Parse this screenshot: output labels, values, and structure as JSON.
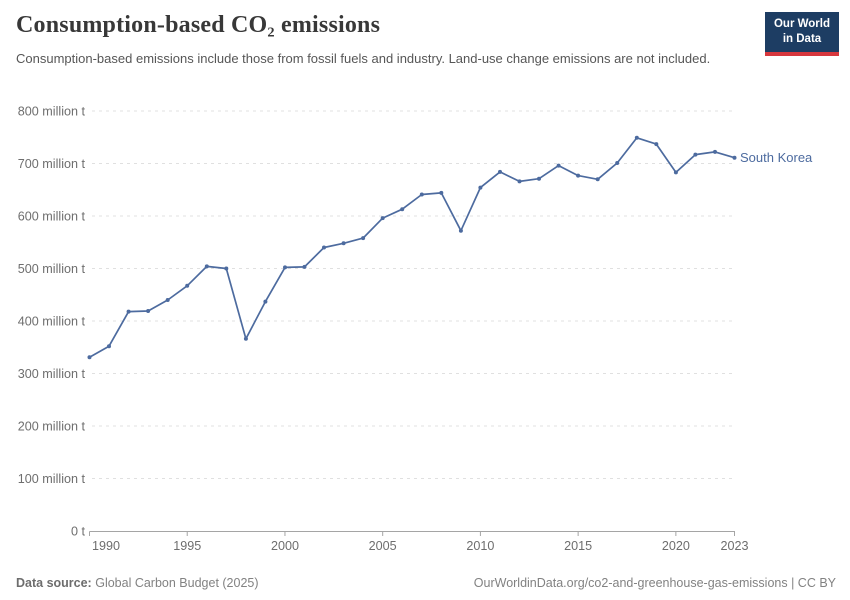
{
  "header": {
    "title": "Consumption-based CO₂ emissions",
    "subtitle": "Consumption-based emissions include those from fossil fuels and industry. Land-use change emissions are not included.",
    "logo": {
      "line1": "Our World",
      "line2": "in Data"
    }
  },
  "chart_data": {
    "type": "line",
    "title": "Consumption-based CO₂ emissions",
    "unit": "million t",
    "grid": "horizontal-dashed",
    "legend_position": "end-of-line-label",
    "xlim": [
      1990,
      2023
    ],
    "ylim": [
      0,
      800
    ],
    "x": [
      1990,
      1991,
      1992,
      1993,
      1994,
      1995,
      1996,
      1997,
      1998,
      1999,
      2000,
      2001,
      2002,
      2003,
      2004,
      2005,
      2006,
      2007,
      2008,
      2009,
      2010,
      2011,
      2012,
      2013,
      2014,
      2015,
      2016,
      2017,
      2018,
      2019,
      2020,
      2021,
      2022,
      2023
    ],
    "series": [
      {
        "name": "South Korea",
        "values": [
          331,
          352,
          418,
          419,
          440,
          467,
          504,
          500,
          366,
          437,
          502,
          503,
          540,
          548,
          558,
          596,
          613,
          641,
          644,
          572,
          654,
          684,
          666,
          671,
          696,
          677,
          670,
          701,
          749,
          737,
          683,
          717,
          722,
          711
        ]
      }
    ],
    "y_ticks": [
      {
        "value": 800,
        "label": "800 million t"
      },
      {
        "value": 700,
        "label": "700 million t"
      },
      {
        "value": 600,
        "label": "600 million t"
      },
      {
        "value": 500,
        "label": "500 million t"
      },
      {
        "value": 400,
        "label": "400 million t"
      },
      {
        "value": 300,
        "label": "300 million t"
      },
      {
        "value": 200,
        "label": "200 million t"
      },
      {
        "value": 100,
        "label": "100 million t"
      },
      {
        "value": 0,
        "label": "0 t"
      }
    ],
    "x_ticks": [
      {
        "value": 1990,
        "label": "1990"
      },
      {
        "value": 1995,
        "label": "1995"
      },
      {
        "value": 2000,
        "label": "2000"
      },
      {
        "value": 2005,
        "label": "2005"
      },
      {
        "value": 2010,
        "label": "2010"
      },
      {
        "value": 2015,
        "label": "2015"
      },
      {
        "value": 2020,
        "label": "2020"
      },
      {
        "value": 2023,
        "label": "2023"
      }
    ],
    "colors": {
      "line": "#4d6b9f",
      "entity_label": "#4d6b9f",
      "grid": "#e0e0e0",
      "axis": "#a5a5a5",
      "axis_text": "#6e6e6e"
    }
  },
  "footer": {
    "source_label": "Data source:",
    "source_text": "Global Carbon Budget (2025)",
    "attribution": "OurWorldinData.org/co2-and-greenhouse-gas-emissions | CC BY"
  }
}
